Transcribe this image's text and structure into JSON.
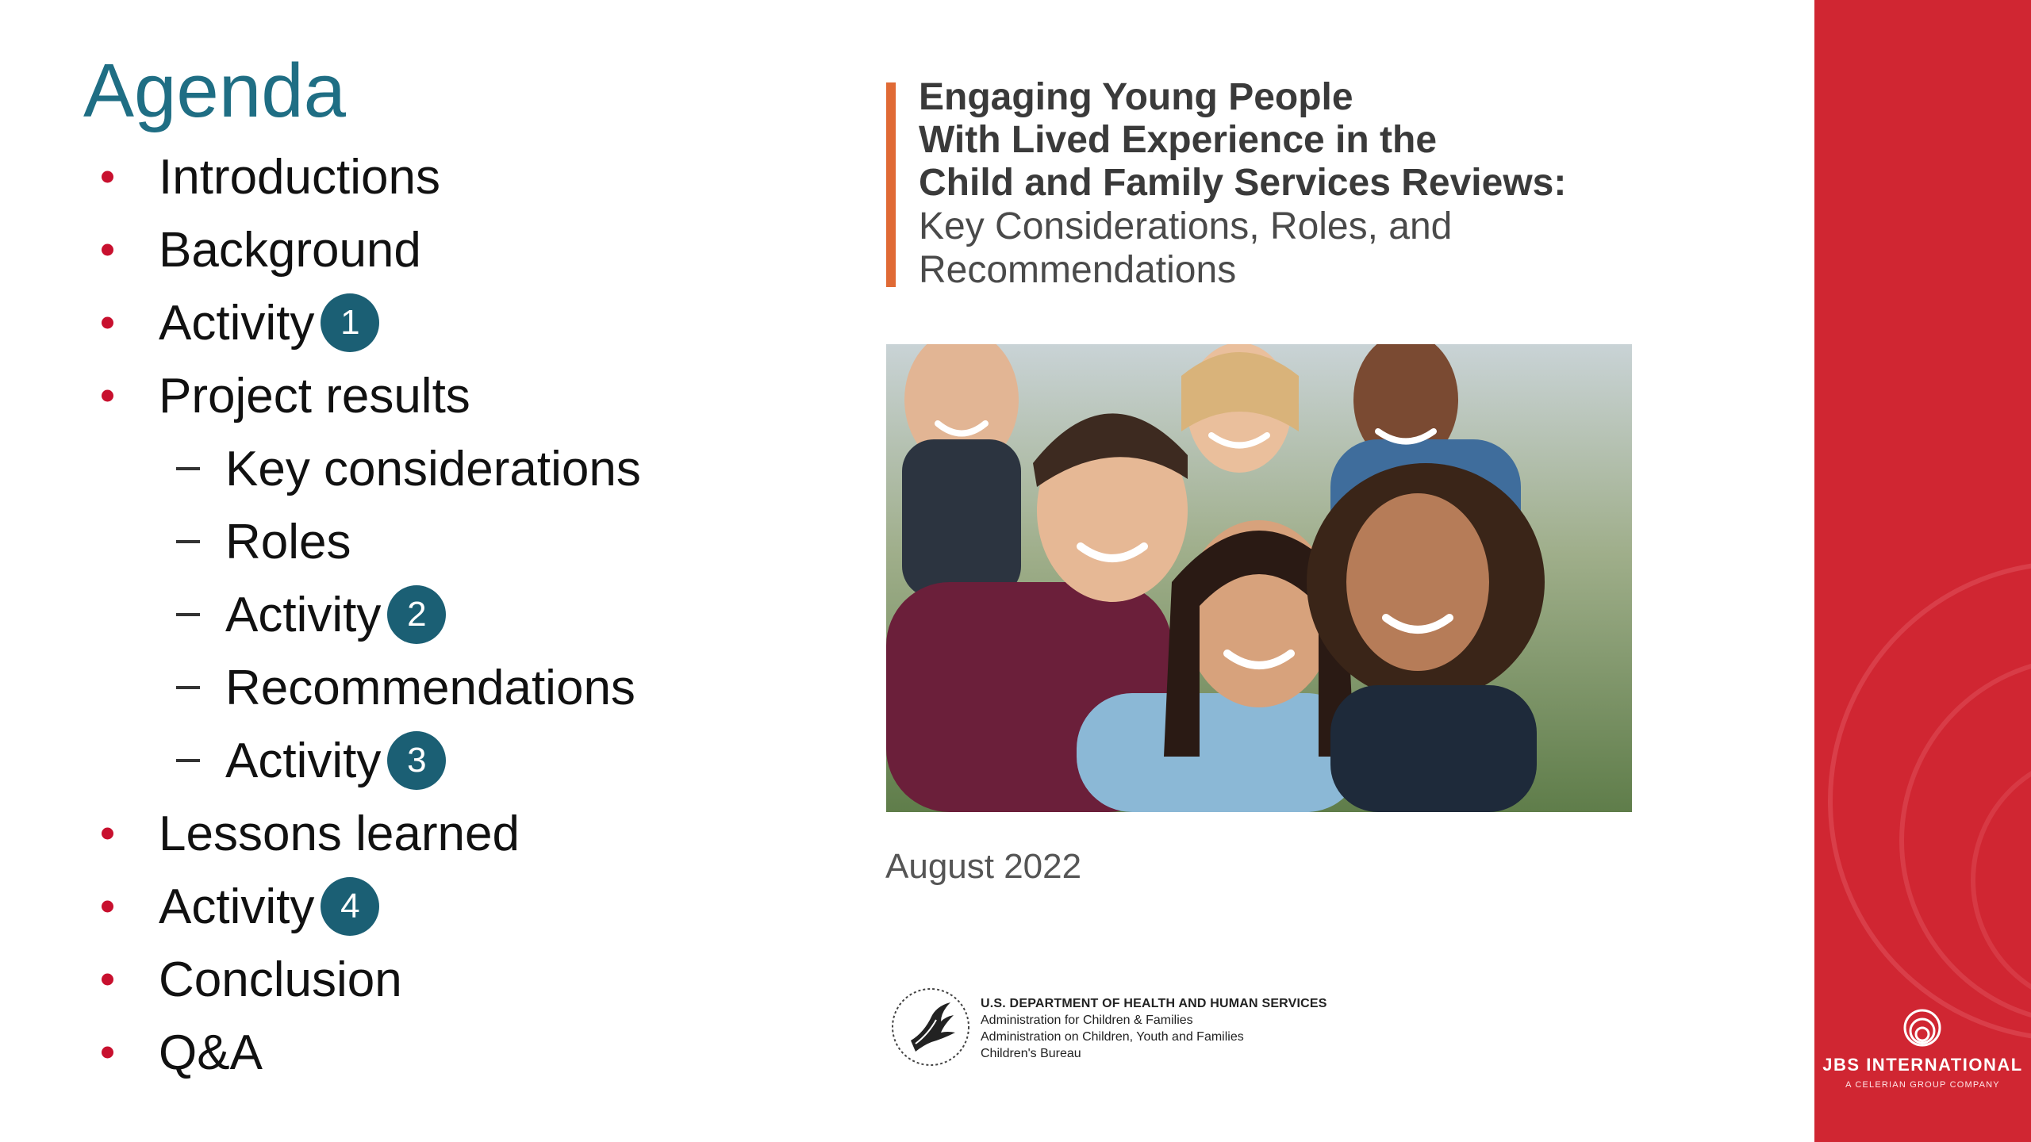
{
  "agenda": {
    "title": "Agenda",
    "items": [
      {
        "label": "Introductions",
        "level": 1,
        "badge": ""
      },
      {
        "label": "Background",
        "level": 1,
        "badge": ""
      },
      {
        "label": "Activity",
        "level": 1,
        "badge": "1"
      },
      {
        "label": "Project results",
        "level": 1,
        "badge": ""
      },
      {
        "label": "Key considerations",
        "level": 2,
        "badge": ""
      },
      {
        "label": "Roles",
        "level": 2,
        "badge": ""
      },
      {
        "label": "Activity",
        "level": 2,
        "badge": "2"
      },
      {
        "label": "Recommendations",
        "level": 2,
        "badge": ""
      },
      {
        "label": "Activity",
        "level": 2,
        "badge": "3"
      },
      {
        "label": "Lessons learned",
        "level": 1,
        "badge": ""
      },
      {
        "label": "Activity",
        "level": 1,
        "badge": "4"
      },
      {
        "label": "Conclusion",
        "level": 1,
        "badge": ""
      },
      {
        "label": "Q&A",
        "level": 1,
        "badge": ""
      }
    ]
  },
  "report": {
    "title_lines": [
      "Engaging Young People",
      "With Lived Experience in the",
      "Child and Family Services Reviews:"
    ],
    "subtitle_lines": [
      "Key Considerations, Roles, and",
      "Recommendations"
    ],
    "date": "August 2022",
    "agency": {
      "department": "U.S. DEPARTMENT OF HEALTH AND HUMAN SERVICES",
      "lines": [
        "Administration for Children & Families",
        "Administration on Children, Youth and Families",
        "Children's Bureau"
      ]
    }
  },
  "brand": {
    "name": "JBS INTERNATIONAL",
    "tagline": "A CELERIAN GROUP COMPANY"
  },
  "colors": {
    "agenda_title": "#1f6e84",
    "badge": "#1b5f74",
    "bullet": "#c8102e",
    "accent_bar": "#e06a35",
    "brand_panel": "#d02632"
  }
}
